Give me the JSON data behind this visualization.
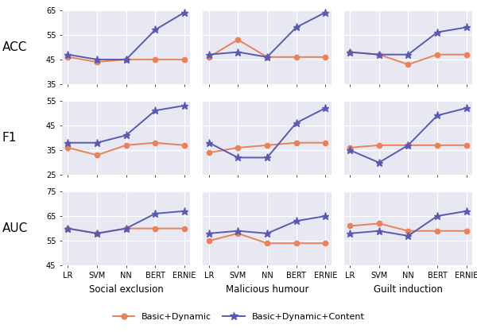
{
  "categories": [
    "LR",
    "SVM",
    "NN",
    "BERT",
    "ERNIE"
  ],
  "rows": [
    "ACC",
    "F1",
    "AUC"
  ],
  "cols": [
    "Social exclusion",
    "Malicious humour",
    "Guilt induction"
  ],
  "ylims": {
    "ACC": [
      35,
      65
    ],
    "F1": [
      25,
      55
    ],
    "AUC": [
      45,
      75
    ]
  },
  "yticks": {
    "ACC": [
      35,
      45,
      55,
      65
    ],
    "F1": [
      25,
      35,
      45,
      55
    ],
    "AUC": [
      45,
      55,
      65,
      75
    ]
  },
  "data": {
    "Social exclusion": {
      "ACC": {
        "basic_dynamic": [
          46,
          44,
          45,
          45,
          45
        ],
        "basic_dynamic_content": [
          47,
          45,
          45,
          57,
          64
        ]
      },
      "F1": {
        "basic_dynamic": [
          36,
          33,
          37,
          38,
          37
        ],
        "basic_dynamic_content": [
          38,
          38,
          41,
          51,
          53
        ]
      },
      "AUC": {
        "basic_dynamic": [
          60,
          58,
          60,
          60,
          60
        ],
        "basic_dynamic_content": [
          60,
          58,
          60,
          66,
          67
        ]
      }
    },
    "Malicious humour": {
      "ACC": {
        "basic_dynamic": [
          46,
          53,
          46,
          46,
          46
        ],
        "basic_dynamic_content": [
          47,
          48,
          46,
          58,
          64
        ]
      },
      "F1": {
        "basic_dynamic": [
          34,
          36,
          37,
          38,
          38
        ],
        "basic_dynamic_content": [
          38,
          32,
          32,
          46,
          52
        ]
      },
      "AUC": {
        "basic_dynamic": [
          55,
          58,
          54,
          54,
          54
        ],
        "basic_dynamic_content": [
          58,
          59,
          58,
          63,
          65
        ]
      }
    },
    "Guilt induction": {
      "ACC": {
        "basic_dynamic": [
          48,
          47,
          43,
          47,
          47
        ],
        "basic_dynamic_content": [
          48,
          47,
          47,
          56,
          58
        ]
      },
      "F1": {
        "basic_dynamic": [
          36,
          37,
          37,
          37,
          37
        ],
        "basic_dynamic_content": [
          35,
          30,
          37,
          49,
          52
        ]
      },
      "AUC": {
        "basic_dynamic": [
          61,
          62,
          59,
          59,
          59
        ],
        "basic_dynamic_content": [
          58,
          59,
          57,
          65,
          67
        ]
      }
    }
  },
  "color_basic_dynamic": "#E8825A",
  "color_basic_dynamic_content": "#5A5AB0",
  "marker_basic_dynamic": "o",
  "marker_basic_dynamic_content": "*",
  "legend_labels": [
    "Basic+Dynamic",
    "Basic+Dynamic+Content"
  ],
  "background_color": "#E8E8F2",
  "row_label_fontsize": 11,
  "xlabel_fontsize": 8.5,
  "tick_fontsize": 7,
  "legend_fontsize": 8
}
